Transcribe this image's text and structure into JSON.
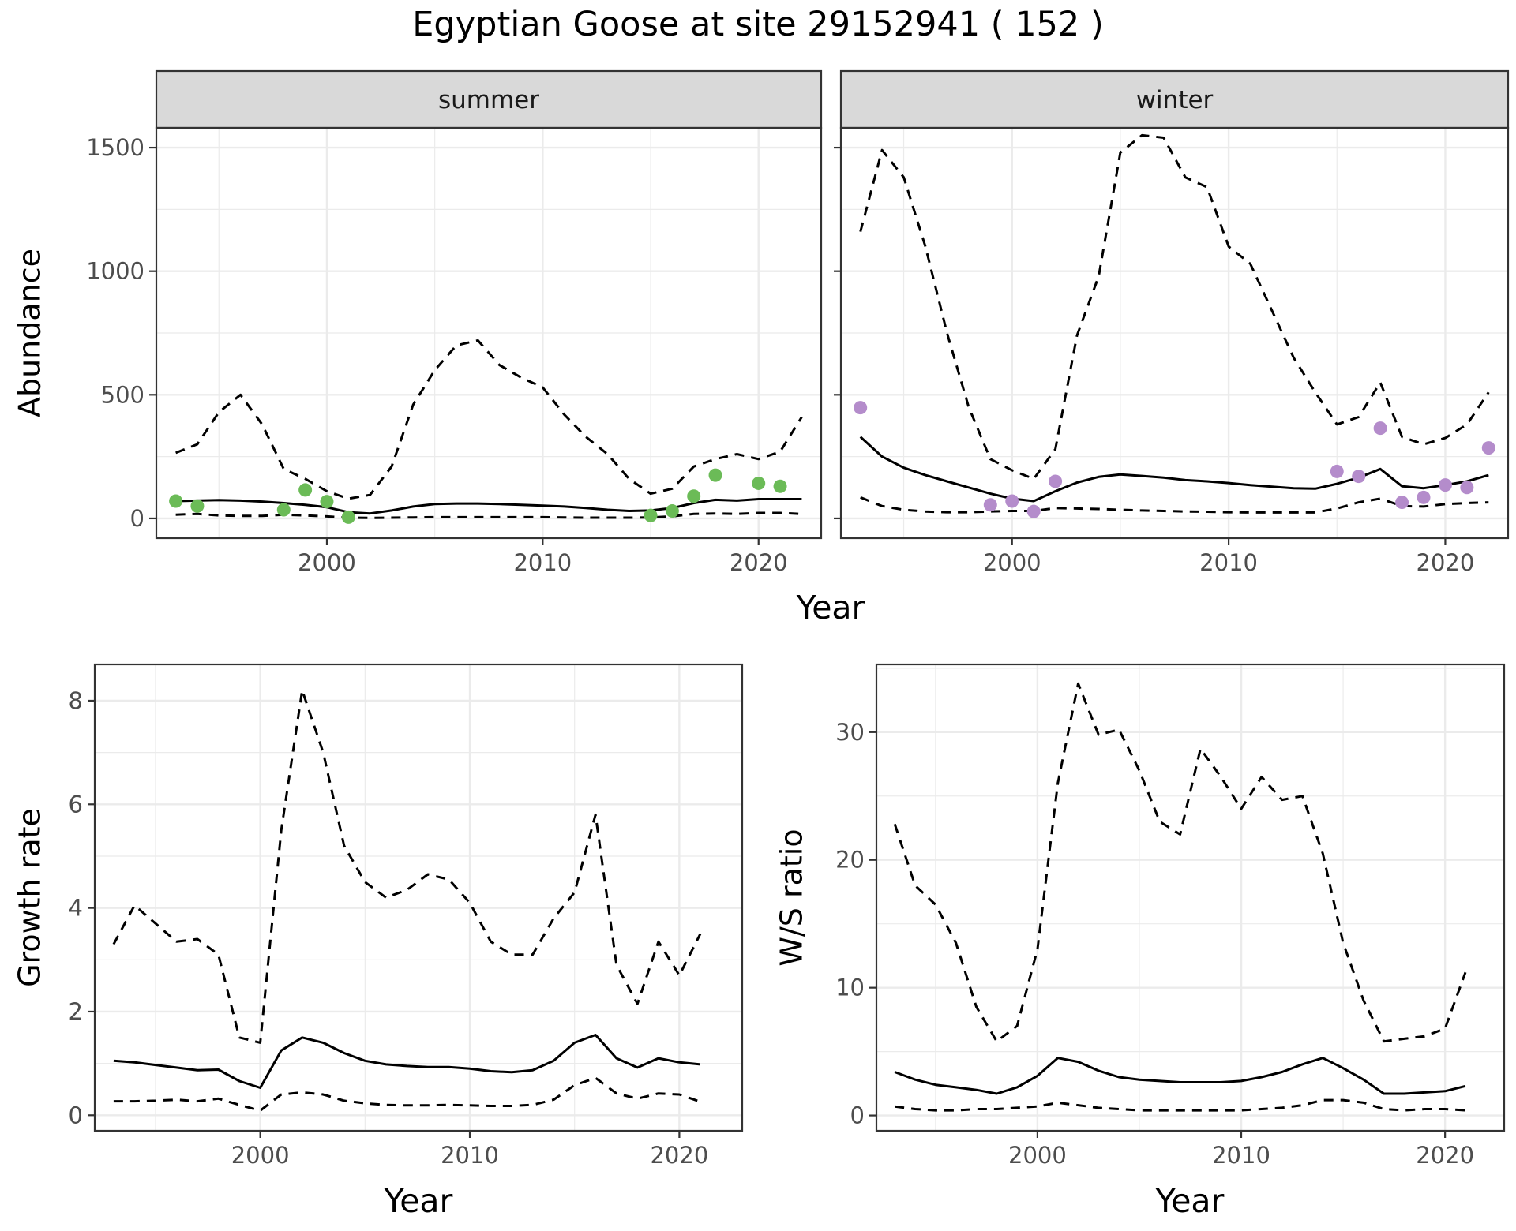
{
  "title": "Egyptian Goose at site 29152941 ( 152 )",
  "colors": {
    "summer_points": "#6bbb57",
    "winter_points": "#b48ccb",
    "strip": "#d9d9d9",
    "grid": "#ebebeb"
  },
  "chart_data": [
    {
      "type": "line",
      "panel": "summer",
      "strip_label": "summer",
      "xlabel": "Year",
      "ylabel": "Abundance",
      "xlim": [
        1992.1,
        2022.9
      ],
      "ylim": [
        -80,
        1580
      ],
      "xticks": [
        2000,
        2010,
        2020
      ],
      "yticks": [
        0,
        500,
        1000,
        1500
      ],
      "series": [
        {
          "style": "solid",
          "x": [
            1993,
            1994,
            1995,
            1996,
            1997,
            1998,
            1999,
            2000,
            2001,
            2002,
            2003,
            2004,
            2005,
            2006,
            2007,
            2008,
            2009,
            2010,
            2011,
            2012,
            2013,
            2014,
            2015,
            2016,
            2017,
            2018,
            2019,
            2020,
            2021,
            2022
          ],
          "values": [
            70,
            72,
            74,
            72,
            68,
            62,
            55,
            45,
            25,
            20,
            32,
            48,
            58,
            60,
            60,
            58,
            55,
            52,
            48,
            42,
            35,
            30,
            32,
            42,
            62,
            75,
            72,
            78,
            78,
            78
          ]
        },
        {
          "style": "dashed",
          "x": [
            1993,
            1994,
            1995,
            1996,
            1997,
            1998,
            1999,
            2000,
            2001,
            2002,
            2003,
            2004,
            2005,
            2006,
            2007,
            2008,
            2009,
            2010,
            2011,
            2012,
            2013,
            2014,
            2015,
            2016,
            2017,
            2018,
            2019,
            2020,
            2021,
            2022
          ],
          "values": [
            265,
            300,
            430,
            500,
            380,
            200,
            160,
            110,
            80,
            95,
            210,
            460,
            600,
            700,
            720,
            620,
            570,
            530,
            420,
            330,
            260,
            160,
            100,
            120,
            210,
            240,
            260,
            240,
            270,
            410
          ]
        },
        {
          "style": "dashed",
          "x": [
            1993,
            1994,
            1995,
            1996,
            1997,
            1998,
            1999,
            2000,
            2001,
            2002,
            2003,
            2004,
            2005,
            2006,
            2007,
            2008,
            2009,
            2010,
            2011,
            2012,
            2013,
            2014,
            2015,
            2016,
            2017,
            2018,
            2019,
            2020,
            2021,
            2022
          ],
          "values": [
            15,
            18,
            12,
            10,
            10,
            15,
            12,
            8,
            3,
            2,
            3,
            4,
            5,
            5,
            5,
            5,
            5,
            5,
            4,
            3,
            3,
            3,
            4,
            8,
            18,
            20,
            18,
            22,
            22,
            18
          ]
        }
      ],
      "points": {
        "x": [
          1993,
          1994,
          1998,
          1999,
          2000,
          2001,
          2015,
          2016,
          2017,
          2018,
          2020,
          2021
        ],
        "values": [
          70,
          50,
          35,
          115,
          68,
          5,
          12,
          30,
          90,
          175,
          142,
          130
        ]
      }
    },
    {
      "type": "line",
      "panel": "winter",
      "strip_label": "winter",
      "xlabel": "Year",
      "ylabel": "",
      "xlim": [
        1992.1,
        2022.9
      ],
      "ylim": [
        -80,
        1580
      ],
      "xticks": [
        2000,
        2010,
        2020
      ],
      "yticks": [
        0,
        500,
        1000,
        1500
      ],
      "series": [
        {
          "style": "solid",
          "x": [
            1993,
            1994,
            1995,
            1996,
            1997,
            1998,
            1999,
            2000,
            2001,
            2002,
            2003,
            2004,
            2005,
            2006,
            2007,
            2008,
            2009,
            2010,
            2011,
            2012,
            2013,
            2014,
            2015,
            2016,
            2017,
            2018,
            2019,
            2020,
            2021,
            2022
          ],
          "values": [
            330,
            250,
            205,
            175,
            150,
            125,
            100,
            80,
            70,
            110,
            145,
            168,
            178,
            172,
            165,
            155,
            150,
            143,
            135,
            128,
            122,
            120,
            140,
            165,
            200,
            130,
            122,
            135,
            150,
            175
          ]
        },
        {
          "style": "dashed",
          "x": [
            1993,
            1994,
            1995,
            1996,
            1997,
            1998,
            1999,
            2000,
            2001,
            2002,
            2003,
            2004,
            2005,
            2006,
            2007,
            2008,
            2009,
            2010,
            2011,
            2012,
            2013,
            2014,
            2015,
            2016,
            2017,
            2018,
            2019,
            2020,
            2021,
            2022
          ],
          "values": [
            1160,
            1490,
            1380,
            1100,
            750,
            450,
            240,
            195,
            160,
            280,
            740,
            980,
            1480,
            1550,
            1540,
            1380,
            1340,
            1100,
            1030,
            840,
            650,
            510,
            380,
            410,
            550,
            330,
            300,
            325,
            380,
            510
          ]
        },
        {
          "style": "dashed",
          "x": [
            1993,
            1994,
            1995,
            1996,
            1997,
            1998,
            1999,
            2000,
            2001,
            2002,
            2003,
            2004,
            2005,
            2006,
            2007,
            2008,
            2009,
            2010,
            2011,
            2012,
            2013,
            2014,
            2015,
            2016,
            2017,
            2018,
            2019,
            2020,
            2021,
            2022
          ],
          "values": [
            85,
            50,
            35,
            28,
            25,
            25,
            28,
            30,
            30,
            42,
            40,
            38,
            35,
            32,
            30,
            28,
            27,
            25,
            24,
            24,
            24,
            24,
            40,
            65,
            80,
            50,
            48,
            58,
            62,
            65
          ]
        }
      ],
      "points": {
        "x": [
          1993,
          1999,
          2000,
          2001,
          2002,
          2015,
          2016,
          2017,
          2018,
          2019,
          2020,
          2021,
          2022
        ],
        "values": [
          448,
          55,
          70,
          28,
          150,
          190,
          170,
          365,
          65,
          85,
          135,
          125,
          285
        ]
      }
    },
    {
      "type": "line",
      "panel": "growth",
      "xlabel": "Year",
      "ylabel": "Growth rate",
      "xlim": [
        1992.1,
        2023.0
      ],
      "ylim": [
        -0.3,
        8.7
      ],
      "xticks": [
        2000,
        2010,
        2020
      ],
      "yticks": [
        0,
        2,
        4,
        6,
        8
      ],
      "series": [
        {
          "style": "solid",
          "x": [
            1993,
            1994,
            1995,
            1996,
            1997,
            1998,
            1999,
            2000,
            2001,
            2002,
            2003,
            2004,
            2005,
            2006,
            2007,
            2008,
            2009,
            2010,
            2011,
            2012,
            2013,
            2014,
            2015,
            2016,
            2017,
            2018,
            2019,
            2020,
            2021
          ],
          "values": [
            1.05,
            1.02,
            0.97,
            0.92,
            0.87,
            0.88,
            0.66,
            0.53,
            1.25,
            1.5,
            1.4,
            1.2,
            1.05,
            0.98,
            0.95,
            0.93,
            0.93,
            0.9,
            0.85,
            0.83,
            0.87,
            1.05,
            1.4,
            1.55,
            1.1,
            0.92,
            1.1,
            1.02,
            0.98
          ]
        },
        {
          "style": "dashed",
          "x": [
            1993,
            1994,
            1995,
            1996,
            1997,
            1998,
            1999,
            2000,
            2001,
            2002,
            2003,
            2004,
            2005,
            2006,
            2007,
            2008,
            2009,
            2010,
            2011,
            2012,
            2013,
            2014,
            2015,
            2016,
            2017,
            2018,
            2019,
            2020,
            2021
          ],
          "values": [
            3.3,
            4.05,
            3.7,
            3.35,
            3.4,
            3.1,
            1.5,
            1.4,
            5.5,
            8.2,
            7.0,
            5.2,
            4.5,
            4.2,
            4.35,
            4.65,
            4.55,
            4.1,
            3.35,
            3.1,
            3.1,
            3.8,
            4.3,
            5.8,
            2.9,
            2.15,
            3.35,
            2.7,
            3.5
          ]
        },
        {
          "style": "dashed",
          "x": [
            1993,
            1994,
            1995,
            1996,
            1997,
            1998,
            1999,
            2000,
            2001,
            2002,
            2003,
            2004,
            2005,
            2006,
            2007,
            2008,
            2009,
            2010,
            2011,
            2012,
            2013,
            2014,
            2015,
            2016,
            2017,
            2018,
            2019,
            2020,
            2021
          ],
          "values": [
            0.27,
            0.27,
            0.28,
            0.3,
            0.27,
            0.32,
            0.2,
            0.09,
            0.4,
            0.44,
            0.4,
            0.28,
            0.23,
            0.2,
            0.19,
            0.19,
            0.2,
            0.19,
            0.18,
            0.18,
            0.2,
            0.3,
            0.58,
            0.72,
            0.42,
            0.32,
            0.42,
            0.4,
            0.26
          ]
        }
      ]
    },
    {
      "type": "line",
      "panel": "ratio",
      "xlabel": "Year",
      "ylabel": "W/S ratio",
      "xlim": [
        1992.1,
        2022.9
      ],
      "ylim": [
        -1.2,
        35.3
      ],
      "xticks": [
        2000,
        2010,
        2020
      ],
      "yticks": [
        0,
        10,
        20,
        30
      ],
      "series": [
        {
          "style": "solid",
          "x": [
            1993,
            1994,
            1995,
            1996,
            1997,
            1998,
            1999,
            2000,
            2001,
            2002,
            2003,
            2004,
            2005,
            2006,
            2007,
            2008,
            2009,
            2010,
            2011,
            2012,
            2013,
            2014,
            2015,
            2016,
            2017,
            2018,
            2019,
            2020,
            2021
          ],
          "values": [
            3.4,
            2.8,
            2.4,
            2.2,
            2.0,
            1.7,
            2.2,
            3.1,
            4.5,
            4.2,
            3.5,
            3.0,
            2.8,
            2.7,
            2.6,
            2.6,
            2.6,
            2.7,
            3.0,
            3.4,
            4.0,
            4.5,
            3.7,
            2.8,
            1.7,
            1.7,
            1.8,
            1.9,
            2.3
          ]
        },
        {
          "style": "dashed",
          "x": [
            1993,
            1994,
            1995,
            1996,
            1997,
            1998,
            1999,
            2000,
            2001,
            2002,
            2003,
            2004,
            2005,
            2006,
            2007,
            2008,
            2009,
            2010,
            2011,
            2012,
            2013,
            2014,
            2015,
            2016,
            2017,
            2018,
            2019,
            2020,
            2021
          ],
          "values": [
            22.8,
            18.0,
            16.5,
            13.5,
            8.5,
            5.8,
            7.0,
            13.0,
            26.0,
            33.8,
            29.8,
            30.2,
            27.0,
            23.0,
            22.0,
            28.7,
            26.5,
            24.0,
            26.5,
            24.7,
            25.0,
            20.5,
            13.5,
            9.0,
            5.8,
            6.0,
            6.2,
            6.8,
            11.2
          ]
        },
        {
          "style": "dashed",
          "x": [
            1993,
            1994,
            1995,
            1996,
            1997,
            1998,
            1999,
            2000,
            2001,
            2002,
            2003,
            2004,
            2005,
            2006,
            2007,
            2008,
            2009,
            2010,
            2011,
            2012,
            2013,
            2014,
            2015,
            2016,
            2017,
            2018,
            2019,
            2020,
            2021
          ],
          "values": [
            0.7,
            0.5,
            0.4,
            0.4,
            0.5,
            0.5,
            0.6,
            0.7,
            1.0,
            0.8,
            0.6,
            0.5,
            0.4,
            0.4,
            0.4,
            0.4,
            0.4,
            0.4,
            0.5,
            0.6,
            0.8,
            1.2,
            1.2,
            1.0,
            0.5,
            0.4,
            0.5,
            0.5,
            0.4
          ]
        }
      ]
    }
  ]
}
